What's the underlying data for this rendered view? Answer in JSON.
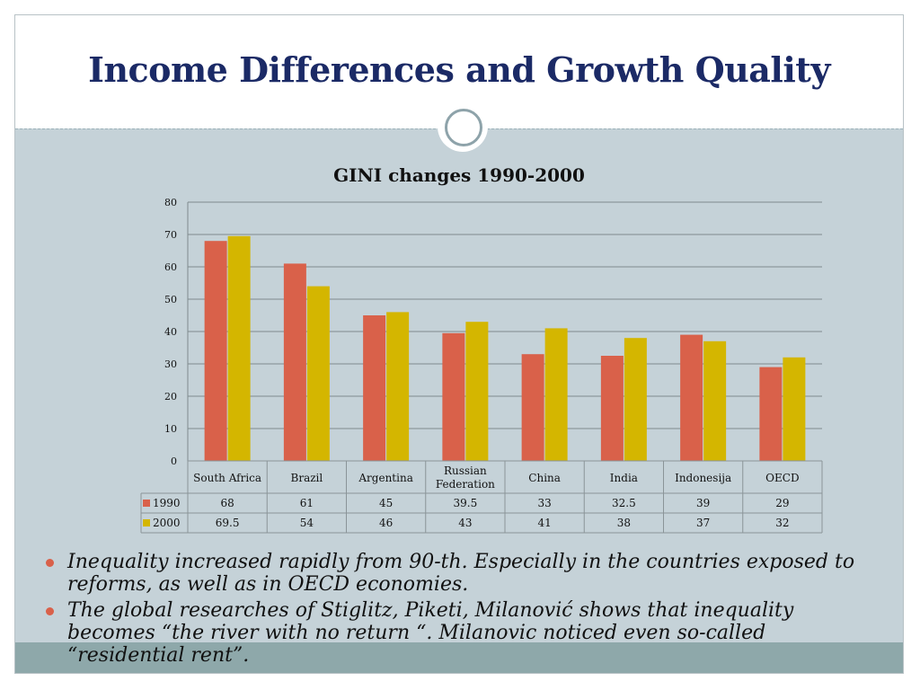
{
  "slide": {
    "title": "Income Differences and Growth Quality",
    "bullets": [
      "Inequality increased rapidly from 90-th. Especially in the countries exposed to reforms, as well as in OECD economies.",
      "The global researches of Stiglitz, Piketi, Milanović shows that inequality becomes “the river with no return “.  Milanovic noticed even so-called “residential rent”."
    ],
    "bullet_color": "#d9614a"
  },
  "chart_data": {
    "type": "bar",
    "title": "GINI changes 1990-2000",
    "categories": [
      "South Africa",
      "Brazil",
      "Argentina",
      "Russian Federation",
      "China",
      "India",
      "Indonesija",
      "OECD"
    ],
    "series": [
      {
        "name": "1990",
        "values": [
          68,
          61,
          45,
          39.5,
          33,
          32.5,
          39,
          29
        ],
        "labels": [
          "68",
          "61",
          "45",
          "39.5",
          "33",
          "32.5",
          "39",
          "29"
        ],
        "color": "#d9614a"
      },
      {
        "name": "2000",
        "values": [
          69.5,
          54,
          46,
          43,
          41,
          38,
          37,
          32
        ],
        "labels": [
          "69.5",
          "54",
          "46",
          "43",
          "41",
          "38",
          "37",
          "32"
        ],
        "color": "#d4b600"
      }
    ],
    "ylim": [
      0,
      80
    ],
    "yticks": [
      "0",
      "10",
      "20",
      "30",
      "40",
      "50",
      "60",
      "70",
      "80"
    ],
    "grid": true,
    "legend": "data-table"
  }
}
